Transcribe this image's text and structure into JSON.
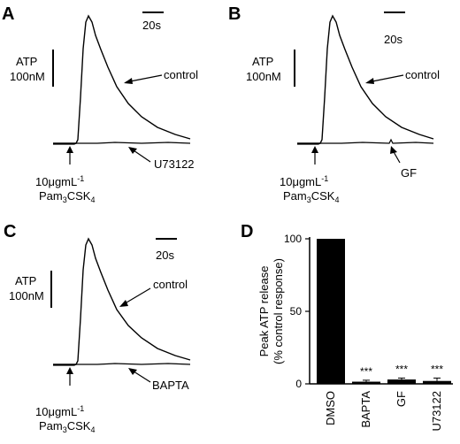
{
  "panels": {
    "A": {
      "letter": "A",
      "scale_time": "20s",
      "scale_y_top": "ATP",
      "scale_y_bottom": "100nM",
      "trace_labels": [
        "control",
        "U73122"
      ],
      "stim_line1": "10μgmL",
      "stim_sup": "-1",
      "stim_line2": "Pam",
      "stim_sub": "3",
      "stim_tail": "CSK",
      "stim_sub2": "4"
    },
    "B": {
      "letter": "B",
      "scale_time": "20s",
      "scale_y_top": "ATP",
      "scale_y_bottom": "100nM",
      "trace_labels": [
        "control",
        "GF"
      ],
      "stim_line1": "10μgmL",
      "stim_sup": "-1",
      "stim_line2": "Pam",
      "stim_sub": "3",
      "stim_tail": "CSK",
      "stim_sub2": "4"
    },
    "C": {
      "letter": "C",
      "scale_time": "20s",
      "scale_y_top": "ATP",
      "scale_y_bottom": "100nM",
      "trace_labels": [
        "control",
        "BAPTA"
      ],
      "stim_line1": "10μgmL",
      "stim_sup": "-1",
      "stim_line2": "Pam",
      "stim_sub": "3",
      "stim_tail": "CSK",
      "stim_sub2": "4"
    }
  },
  "chart_data": {
    "type": "bar",
    "panel_letter": "D",
    "categories": [
      "DMSO",
      "BAPTA",
      "GF",
      "U73122"
    ],
    "values": [
      100,
      1.5,
      3,
      2
    ],
    "errors": [
      0,
      1,
      1,
      2
    ],
    "significance": [
      "",
      "***",
      "***",
      "***"
    ],
    "ylabel_line1": "Peak ATP release",
    "ylabel_line2": "(% control response)",
    "ylim": [
      0,
      100
    ],
    "yticks": [
      0,
      50,
      100
    ],
    "bar_color": "#000000"
  }
}
